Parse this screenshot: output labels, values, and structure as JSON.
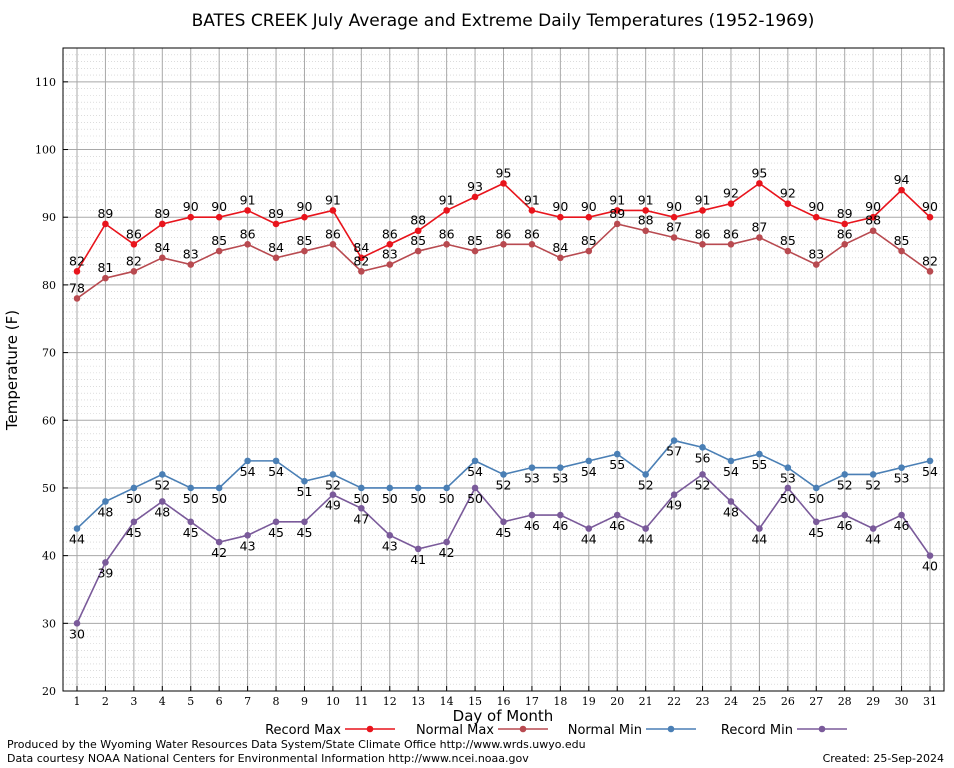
{
  "chart_data": {
    "type": "line",
    "title": "BATES CREEK July Average and Extreme Daily Temperatures (1952-1969)",
    "xlabel": "Day of Month",
    "ylabel": "Temperature (F)",
    "ylim": [
      20,
      115
    ],
    "yticks": [
      20,
      30,
      40,
      50,
      60,
      70,
      80,
      90,
      100,
      110
    ],
    "x": [
      1,
      2,
      3,
      4,
      5,
      6,
      7,
      8,
      9,
      10,
      11,
      12,
      13,
      14,
      15,
      16,
      17,
      18,
      19,
      20,
      21,
      22,
      23,
      24,
      25,
      26,
      27,
      28,
      29,
      30,
      31
    ],
    "grid": true,
    "legend_position": "bottom",
    "series": [
      {
        "name": "Record Max",
        "color": "#e8141c",
        "values": [
          82,
          89,
          86,
          89,
          90,
          90,
          91,
          89,
          90,
          91,
          84,
          86,
          88,
          91,
          93,
          95,
          91,
          90,
          90,
          91,
          91,
          90,
          91,
          92,
          95,
          92,
          90,
          89,
          90,
          94,
          90
        ]
      },
      {
        "name": "Normal Max",
        "color": "#b84a50",
        "values": [
          78,
          81,
          82,
          84,
          83,
          85,
          86,
          84,
          85,
          86,
          82,
          83,
          85,
          86,
          85,
          86,
          86,
          84,
          85,
          89,
          88,
          87,
          86,
          86,
          87,
          85,
          83,
          86,
          88,
          85,
          82
        ]
      },
      {
        "name": "Normal Min",
        "color": "#4a7fb5",
        "values": [
          44,
          48,
          50,
          52,
          50,
          50,
          54,
          54,
          51,
          52,
          50,
          50,
          50,
          50,
          54,
          52,
          53,
          53,
          54,
          55,
          52,
          57,
          56,
          54,
          55,
          53,
          50,
          52,
          52,
          53,
          54
        ]
      },
      {
        "name": "Record Min",
        "color": "#7a5a9a",
        "values": [
          30,
          39,
          45,
          48,
          45,
          42,
          43,
          45,
          45,
          49,
          47,
          43,
          41,
          42,
          50,
          45,
          46,
          46,
          44,
          46,
          44,
          49,
          52,
          48,
          44,
          50,
          45,
          46,
          44,
          46,
          40
        ]
      }
    ]
  },
  "footer": {
    "produced_by": "Produced by the Wyoming Water Resources Data System/State Climate Office http://www.wrds.uwyo.edu",
    "data_courtesy": "Data courtesy NOAA National Centers for Environmental Information http://www.ncei.noaa.gov",
    "created": "Created:  25-Sep-2024"
  }
}
